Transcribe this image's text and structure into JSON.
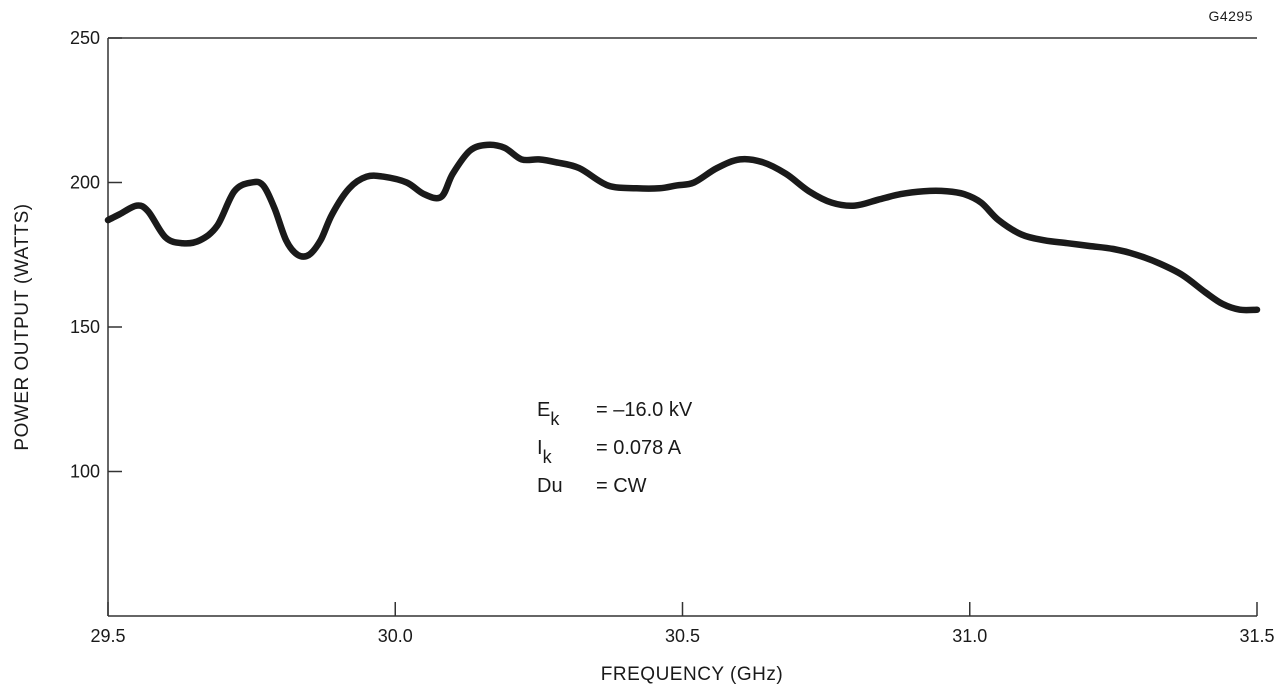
{
  "figure_id": "G4295",
  "chart_data": {
    "type": "line",
    "title": "",
    "xlabel": "FREQUENCY (GHz)",
    "ylabel": "POWER OUTPUT (WATTS)",
    "xlim": [
      29.5,
      31.5
    ],
    "ylim": [
      50,
      250
    ],
    "x_ticks": [
      "29.5",
      "30.0",
      "30.5",
      "31.0",
      "31.5"
    ],
    "y_ticks": [
      "100",
      "150",
      "200",
      "250"
    ],
    "grid": false,
    "series": [
      {
        "color": "#1a1a1a",
        "x": [
          29.5,
          29.52,
          29.55,
          29.57,
          29.6,
          29.63,
          29.66,
          29.69,
          29.72,
          29.75,
          29.77,
          29.79,
          29.81,
          29.83,
          29.85,
          29.87,
          29.89,
          29.92,
          29.95,
          29.98,
          30.02,
          30.05,
          30.08,
          30.1,
          30.13,
          30.16,
          30.19,
          30.22,
          30.25,
          30.28,
          30.32,
          30.37,
          30.42,
          30.46,
          30.49,
          30.52,
          30.56,
          30.6,
          30.64,
          30.68,
          30.72,
          30.76,
          30.8,
          30.84,
          30.88,
          30.92,
          30.96,
          30.99,
          31.02,
          31.05,
          31.09,
          31.13,
          31.17,
          31.21,
          31.25,
          31.29,
          31.33,
          31.37,
          31.41,
          31.44,
          31.47,
          31.5
        ],
        "y": [
          187,
          189,
          192,
          190,
          181,
          179,
          180,
          185,
          197,
          200,
          199,
          191,
          180,
          175,
          175,
          180,
          189,
          198,
          202,
          202,
          200,
          196,
          195,
          203,
          211,
          213,
          212,
          208,
          208,
          207,
          205,
          199,
          198,
          198,
          199,
          200,
          205,
          208,
          207,
          203,
          197,
          193,
          192,
          194,
          196,
          197,
          197,
          196,
          193,
          187,
          182,
          180,
          179,
          178,
          177,
          175,
          172,
          168,
          162,
          158,
          156,
          156
        ]
      }
    ],
    "annotations": [
      {
        "symbol": "E",
        "subscript": "k",
        "text": "=  –16.0 kV"
      },
      {
        "symbol": "I",
        "subscript": "k",
        "text": "=  0.078 A"
      },
      {
        "symbol": "Du",
        "subscript": "",
        "text": "=  CW"
      }
    ]
  }
}
